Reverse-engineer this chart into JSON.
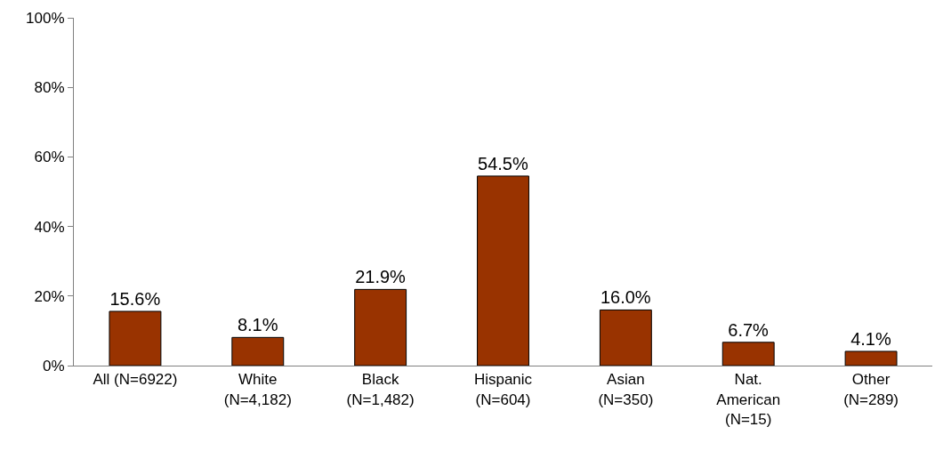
{
  "chart_data": {
    "type": "bar",
    "categories": [
      "All (N=6922)",
      "White\n(N=4,182)",
      "Black\n(N=1,482)",
      "Hispanic\n(N=604)",
      "Asian\n(N=350)",
      "Nat.\nAmerican\n(N=15)",
      "Other\n(N=289)"
    ],
    "values": [
      15.6,
      8.1,
      21.9,
      54.5,
      16.0,
      6.7,
      4.1
    ],
    "value_labels": [
      "15.6%",
      "8.1%",
      "21.9%",
      "54.5%",
      "16.0%",
      "6.7%",
      "4.1%"
    ],
    "color": "#993300",
    "ylim": [
      0,
      100
    ],
    "yticks": [
      {
        "value": 0,
        "label": "0%"
      },
      {
        "value": 20,
        "label": "20%"
      },
      {
        "value": 40,
        "label": "40%"
      },
      {
        "value": 60,
        "label": "60%"
      },
      {
        "value": 80,
        "label": "80%"
      },
      {
        "value": 100,
        "label": "100%"
      }
    ],
    "grid": false,
    "legend": false
  }
}
